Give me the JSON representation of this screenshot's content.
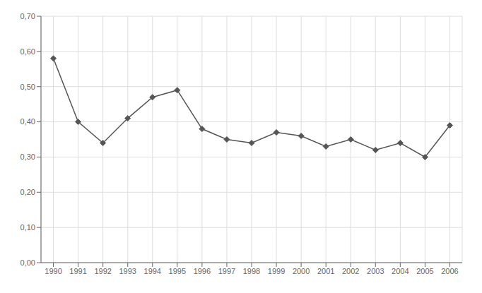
{
  "chart_data": {
    "type": "line",
    "x": [
      1990,
      1991,
      1992,
      1993,
      1994,
      1995,
      1996,
      1997,
      1998,
      1999,
      2000,
      2001,
      2002,
      2003,
      2004,
      2005,
      2006
    ],
    "values": [
      0.58,
      0.4,
      0.34,
      0.41,
      0.47,
      0.49,
      0.38,
      0.35,
      0.34,
      0.37,
      0.36,
      0.33,
      0.35,
      0.32,
      0.34,
      0.3,
      0.39
    ],
    "color": "#555555",
    "marker": "diamond",
    "xlim": [
      1989.5,
      2006.5
    ],
    "xticks": [
      1990,
      1991,
      1992,
      1993,
      1994,
      1995,
      1996,
      1997,
      1998,
      1999,
      2000,
      2001,
      2002,
      2003,
      2004,
      2005,
      2006
    ],
    "ylim": [
      0.0,
      0.7
    ],
    "yticks": [
      {
        "value": 0.0,
        "label": "0,00"
      },
      {
        "value": 0.1,
        "label": "0,10"
      },
      {
        "value": 0.2,
        "label": "0,20"
      },
      {
        "value": 0.3,
        "label": "0,30"
      },
      {
        "value": 0.4,
        "label": "0,40"
      },
      {
        "value": 0.5,
        "label": "0,50"
      },
      {
        "value": 0.6,
        "label": "0,60"
      },
      {
        "value": 0.7,
        "label": "0,70"
      }
    ],
    "grid": true
  }
}
